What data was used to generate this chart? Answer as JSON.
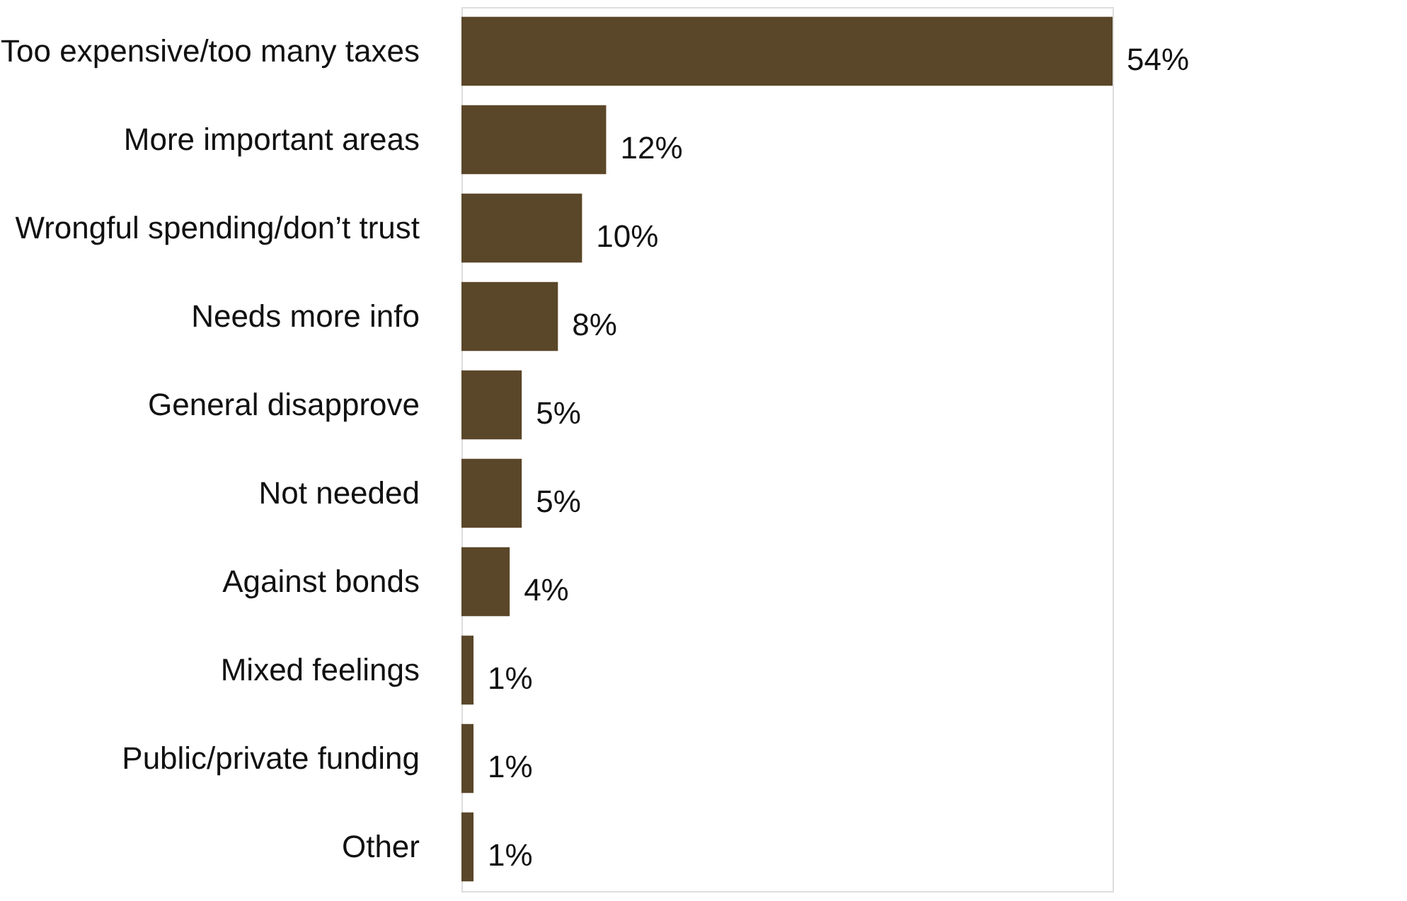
{
  "chart_data": {
    "type": "bar",
    "orientation": "horizontal",
    "categories": [
      "Too expensive/too many taxes",
      "More important areas",
      "Wrongful spending/don’t trust",
      "Needs more info",
      "General disapprove",
      "Not needed",
      "Against bonds",
      "Mixed feelings",
      "Public/private funding",
      "Other"
    ],
    "values": [
      54,
      12,
      10,
      8,
      5,
      5,
      4,
      1,
      1,
      1
    ],
    "value_labels": [
      "54%",
      "12%",
      "10%",
      "8%",
      "5%",
      "5%",
      "4%",
      "1%",
      "1%",
      "1%"
    ],
    "color": "#5a4628"
  }
}
